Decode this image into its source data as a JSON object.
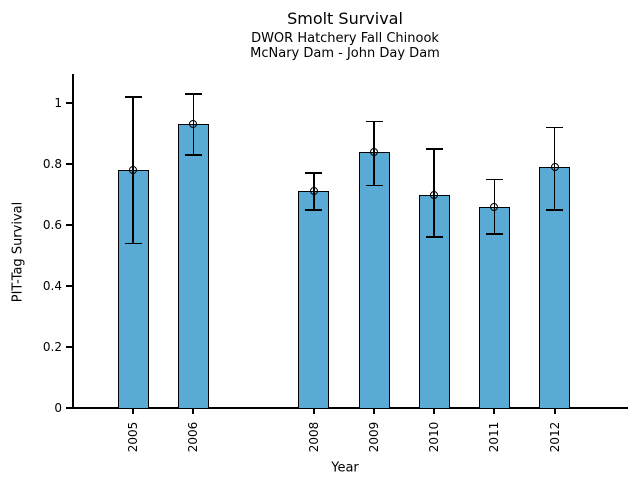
{
  "chart_data": {
    "type": "bar",
    "title": "Smolt Survival",
    "subtitle1": "DWOR Hatchery Fall Chinook",
    "subtitle2": "McNary Dam - John Day Dam",
    "xlabel": "Year",
    "ylabel": "PIT-Tag Survival",
    "categories": [
      "2005",
      "2006",
      "2008",
      "2009",
      "2010",
      "2011",
      "2012"
    ],
    "years": [
      2005,
      2006,
      2008,
      2009,
      2010,
      2011,
      2012
    ],
    "values": [
      0.78,
      0.93,
      0.71,
      0.84,
      0.7,
      0.66,
      0.79
    ],
    "error_low": [
      0.54,
      0.83,
      0.65,
      0.73,
      0.56,
      0.57,
      0.65
    ],
    "error_high": [
      1.02,
      1.03,
      0.77,
      0.94,
      0.85,
      0.75,
      0.92
    ],
    "y_ticks": [
      0,
      0.2,
      0.4,
      0.6,
      0.8,
      1
    ],
    "y_tick_labels": [
      "0",
      "0.2",
      "0.4",
      "0.6",
      "0.8",
      "1"
    ],
    "ylim": [
      0,
      1.1
    ],
    "x_note": "x positions linear in year, 2007 absent leaving a gap",
    "bar_color": "#59ABD5",
    "edge_color": "#000000",
    "marker": "open-circle",
    "grid": false,
    "legend": null,
    "background": "#ffffff"
  }
}
